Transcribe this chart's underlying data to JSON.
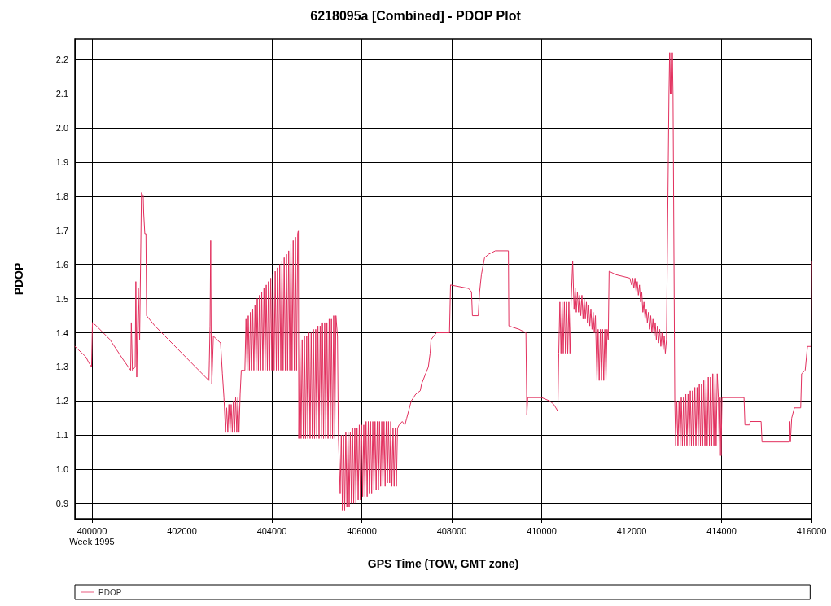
{
  "chart_data": {
    "type": "line",
    "title": "6218095a [Combined] - PDOP Plot",
    "xlabel": "GPS Time (TOW, GMT zone)",
    "ylabel": "PDOP",
    "xlim": [
      399620,
      416000
    ],
    "ylim": [
      0.855,
      2.26
    ],
    "xticks": [
      {
        "value": 400000,
        "label": "400000\nWeek 1995"
      },
      402000,
      404000,
      406000,
      408000,
      410000,
      412000,
      414000,
      416000
    ],
    "yticks": [
      0.9,
      {
        "value": 1,
        "label": "1.0"
      },
      1.1,
      1.2,
      1.3,
      1.4,
      1.5,
      1.6,
      1.7,
      1.8,
      1.9,
      {
        "value": 2,
        "label": "2.0"
      },
      2.1,
      2.2
    ],
    "grid": true,
    "legend": "bottom",
    "marker": "none",
    "line_style": "solid",
    "series": [
      {
        "name": "PDOP",
        "color": "#e2305e",
        "x": [
          399620,
          399700,
          399780,
          399860,
          399940,
          399990,
          400010,
          400100,
          400250,
          400400,
          400550,
          400700,
          400860,
          400875,
          400900,
          400960,
          400975,
          400995,
          401030,
          401060,
          401100,
          401140,
          401150,
          401175,
          401200,
          401214,
          401400,
          401700,
          402000,
          402300,
          402600,
          402610,
          402625,
          402640,
          402650,
          402665,
          402700,
          402860,
          402900,
          402935,
          402970,
          402995,
          403020,
          403045,
          403070,
          403095,
          403120,
          403145,
          403170,
          403195,
          403220,
          403245,
          403270,
          403295,
          403320,
          403380,
          403400,
          403425,
          403450,
          403475,
          403500,
          403525,
          403550,
          403575,
          403600,
          403625,
          403650,
          403675,
          403700,
          403725,
          403750,
          403775,
          403800,
          403825,
          403850,
          403875,
          403900,
          403925,
          403950,
          403975,
          404000,
          404025,
          404050,
          404075,
          404100,
          404125,
          404150,
          404175,
          404200,
          404225,
          404250,
          404275,
          404300,
          404325,
          404350,
          404375,
          404400,
          404425,
          404450,
          404475,
          404500,
          404525,
          404550,
          404575,
          404590,
          404600,
          404625,
          404650,
          404675,
          404700,
          404725,
          404750,
          404775,
          404800,
          404825,
          404850,
          404875,
          404900,
          404925,
          404950,
          404975,
          405000,
          405025,
          405050,
          405075,
          405100,
          405125,
          405150,
          405175,
          405200,
          405225,
          405250,
          405275,
          405300,
          405325,
          405350,
          405375,
          405400,
          405425,
          405460,
          405480,
          405520,
          405545,
          405570,
          405595,
          405620,
          405645,
          405670,
          405695,
          405720,
          405745,
          405770,
          405795,
          405820,
          405845,
          405870,
          405895,
          405920,
          405945,
          405970,
          405995,
          406020,
          406045,
          406070,
          406095,
          406120,
          406145,
          406170,
          406195,
          406220,
          406245,
          406270,
          406295,
          406320,
          406345,
          406370,
          406395,
          406420,
          406445,
          406470,
          406495,
          406520,
          406545,
          406570,
          406595,
          406620,
          406645,
          406670,
          406695,
          406720,
          406745,
          406770,
          406795,
          406830,
          406900,
          406960,
          407000,
          407100,
          407200,
          407300,
          407330,
          407480,
          407520,
          407540,
          407660,
          407950,
          407973,
          408370,
          408440,
          408460,
          408590,
          408620,
          408660,
          408730,
          408820,
          408970,
          409260,
          409270,
          409500,
          409650,
          409670,
          409690,
          410000,
          410180,
          410270,
          410360,
          410380,
          410405,
          410430,
          410455,
          410480,
          410505,
          410530,
          410555,
          410580,
          410605,
          410630,
          410655,
          410690,
          410720,
          410745,
          410770,
          410795,
          410820,
          410845,
          410870,
          410895,
          410920,
          410945,
          410970,
          410995,
          411020,
          411045,
          411070,
          411095,
          411120,
          411145,
          411170,
          411195,
          411230,
          411255,
          411280,
          411305,
          411330,
          411355,
          411380,
          411405,
          411430,
          411455,
          411480,
          411500,
          411650,
          411960,
          412000,
          412025,
          412050,
          412075,
          412100,
          412125,
          412150,
          412175,
          412200,
          412225,
          412250,
          412275,
          412300,
          412325,
          412350,
          412375,
          412400,
          412425,
          412450,
          412475,
          412500,
          412525,
          412550,
          412575,
          412600,
          412625,
          412650,
          412675,
          412700,
          412725,
          412750,
          412775,
          412830,
          412845,
          412860,
          412875,
          412890,
          412905,
          412920,
          412960,
          412980,
          413005,
          413030,
          413055,
          413080,
          413105,
          413130,
          413155,
          413180,
          413205,
          413230,
          413255,
          413280,
          413305,
          413330,
          413355,
          413380,
          413405,
          413430,
          413455,
          413480,
          413505,
          413530,
          413555,
          413580,
          413605,
          413630,
          413655,
          413680,
          413705,
          413730,
          413755,
          413780,
          413805,
          413830,
          413855,
          413880,
          413905,
          413930,
          413950,
          413970,
          413990,
          414010,
          414500,
          414520,
          414620,
          414640,
          414880,
          414900,
          415510,
          415520,
          415530,
          415560,
          415620,
          415760,
          415780,
          415860,
          415910,
          415990,
          416000
        ],
        "values": [
          1.36,
          1.35,
          1.34,
          1.33,
          1.31,
          1.3,
          1.43,
          1.42,
          1.4,
          1.38,
          1.35,
          1.32,
          1.29,
          1.43,
          1.29,
          1.3,
          1.55,
          1.27,
          1.53,
          1.38,
          1.81,
          1.8,
          1.75,
          1.69,
          1.69,
          1.45,
          1.42,
          1.38,
          1.34,
          1.3,
          1.26,
          1.32,
          1.42,
          1.67,
          1.4,
          1.25,
          1.39,
          1.37,
          1.28,
          1.21,
          1.11,
          1.18,
          1.11,
          1.19,
          1.11,
          1.19,
          1.11,
          1.2,
          1.11,
          1.21,
          1.11,
          1.21,
          1.11,
          1.22,
          1.29,
          1.29,
          1.29,
          1.44,
          1.29,
          1.45,
          1.29,
          1.46,
          1.29,
          1.47,
          1.29,
          1.48,
          1.29,
          1.5,
          1.29,
          1.51,
          1.29,
          1.52,
          1.29,
          1.53,
          1.29,
          1.54,
          1.29,
          1.55,
          1.29,
          1.56,
          1.29,
          1.57,
          1.29,
          1.58,
          1.29,
          1.59,
          1.29,
          1.6,
          1.29,
          1.61,
          1.29,
          1.62,
          1.29,
          1.63,
          1.29,
          1.64,
          1.29,
          1.66,
          1.29,
          1.67,
          1.29,
          1.68,
          1.29,
          1.69,
          1.7,
          1.09,
          1.38,
          1.09,
          1.38,
          1.09,
          1.39,
          1.09,
          1.39,
          1.09,
          1.4,
          1.09,
          1.4,
          1.09,
          1.41,
          1.09,
          1.41,
          1.09,
          1.42,
          1.09,
          1.42,
          1.09,
          1.43,
          1.09,
          1.43,
          1.09,
          1.43,
          1.09,
          1.44,
          1.09,
          1.44,
          1.09,
          1.45,
          1.09,
          1.45,
          1.39,
          1.1,
          0.93,
          1.1,
          0.88,
          1.1,
          0.88,
          1.11,
          0.89,
          1.11,
          0.89,
          1.11,
          0.9,
          1.12,
          0.9,
          1.12,
          0.9,
          1.12,
          0.91,
          1.13,
          0.91,
          1.13,
          0.92,
          1.13,
          0.92,
          1.14,
          0.92,
          1.14,
          0.93,
          1.14,
          0.93,
          1.14,
          0.94,
          1.14,
          0.94,
          1.14,
          0.94,
          1.14,
          0.95,
          1.14,
          0.95,
          1.14,
          0.95,
          1.14,
          0.96,
          1.14,
          0.96,
          1.14,
          0.95,
          1.12,
          0.95,
          1.12,
          0.95,
          1.12,
          1.13,
          1.14,
          1.13,
          1.15,
          1.2,
          1.22,
          1.23,
          1.25,
          1.3,
          1.34,
          1.38,
          1.4,
          1.4,
          1.54,
          1.53,
          1.52,
          1.45,
          1.45,
          1.52,
          1.57,
          1.62,
          1.63,
          1.64,
          1.64,
          1.42,
          1.41,
          1.4,
          1.16,
          1.21,
          1.21,
          1.2,
          1.19,
          1.17,
          1.34,
          1.49,
          1.34,
          1.49,
          1.34,
          1.49,
          1.34,
          1.49,
          1.34,
          1.49,
          1.34,
          1.49,
          1.61,
          1.47,
          1.53,
          1.46,
          1.52,
          1.46,
          1.51,
          1.45,
          1.51,
          1.44,
          1.5,
          1.44,
          1.49,
          1.43,
          1.48,
          1.42,
          1.47,
          1.41,
          1.46,
          1.4,
          1.45,
          1.26,
          1.41,
          1.26,
          1.41,
          1.26,
          1.41,
          1.26,
          1.41,
          1.26,
          1.41,
          1.38,
          1.58,
          1.57,
          1.56,
          1.54,
          1.56,
          1.53,
          1.56,
          1.52,
          1.55,
          1.51,
          1.54,
          1.49,
          1.52,
          1.46,
          1.49,
          1.44,
          1.47,
          1.43,
          1.46,
          1.41,
          1.45,
          1.4,
          1.44,
          1.39,
          1.43,
          1.38,
          1.42,
          1.37,
          1.41,
          1.36,
          1.4,
          1.35,
          1.39,
          1.34,
          1.38,
          2.1,
          2.22,
          2.1,
          2.22,
          2.1,
          2.22,
          2.1,
          1.2,
          1.07,
          1.2,
          1.07,
          1.2,
          1.07,
          1.21,
          1.07,
          1.21,
          1.07,
          1.22,
          1.07,
          1.22,
          1.07,
          1.23,
          1.07,
          1.23,
          1.07,
          1.24,
          1.07,
          1.24,
          1.07,
          1.25,
          1.07,
          1.25,
          1.07,
          1.26,
          1.07,
          1.26,
          1.07,
          1.27,
          1.07,
          1.27,
          1.07,
          1.28,
          1.07,
          1.28,
          1.07,
          1.28,
          1.21,
          1.04,
          1.21,
          1.04,
          1.21,
          1.21,
          1.13,
          1.13,
          1.14,
          1.14,
          1.08,
          1.08,
          1.14,
          1.08,
          1.15,
          1.18,
          1.18,
          1.28,
          1.29,
          1.36,
          1.36,
          1.61
        ]
      }
    ]
  }
}
